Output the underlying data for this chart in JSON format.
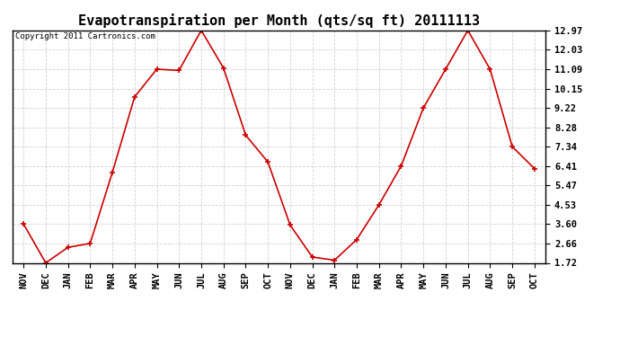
{
  "title": "Evapotranspiration per Month (qts/sq ft) 20111113",
  "copyright_text": "Copyright 2011 Cartronics.com",
  "x_labels": [
    "NOV",
    "DEC",
    "JAN",
    "FEB",
    "MAR",
    "APR",
    "MAY",
    "JUN",
    "JUL",
    "AUG",
    "SEP",
    "OCT",
    "NOV",
    "DEC",
    "JAN",
    "FEB",
    "MAR",
    "APR",
    "MAY",
    "JUN",
    "JUL",
    "AUG",
    "SEP",
    "OCT"
  ],
  "y_values": [
    3.6,
    1.72,
    2.47,
    2.66,
    6.1,
    9.75,
    11.09,
    11.03,
    12.97,
    11.15,
    7.9,
    6.6,
    3.55,
    2.0,
    1.85,
    2.85,
    4.53,
    6.41,
    9.22,
    11.09,
    12.97,
    11.09,
    7.34,
    6.28
  ],
  "line_color": "#cc0000",
  "marker": "+",
  "marker_size": 5,
  "background_color": "#ffffff",
  "grid_color": "#cccccc",
  "yticks": [
    1.72,
    2.66,
    3.6,
    4.53,
    5.47,
    6.41,
    7.34,
    8.28,
    9.22,
    10.15,
    11.09,
    12.03,
    12.97
  ],
  "ylim": [
    1.72,
    12.97
  ],
  "title_fontsize": 11,
  "copyright_fontsize": 6.5,
  "tick_fontsize": 7.5,
  "lw": 1.2
}
